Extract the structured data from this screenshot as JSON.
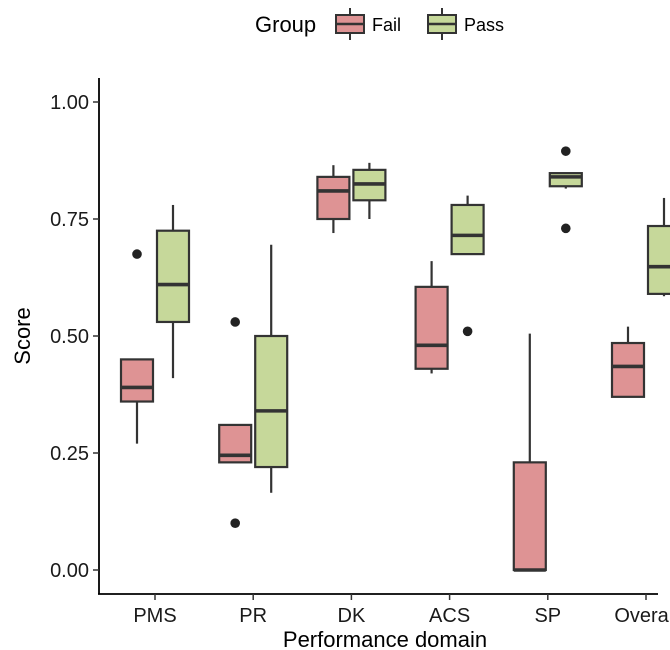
{
  "chart_data": {
    "type": "boxplot",
    "xlabel": "Performance domain",
    "ylabel": "Score",
    "ylim": [
      -0.05,
      1.05
    ],
    "y_ticks": [
      "0.00",
      "0.25",
      "0.50",
      "0.75",
      "1.00"
    ],
    "y_tick_values": [
      0.0,
      0.25,
      0.5,
      0.75,
      1.0
    ],
    "categories": [
      "PMS",
      "PR",
      "DK",
      "ACS",
      "SP",
      "Overall"
    ],
    "legend": {
      "title": "Group",
      "position": "top",
      "entries": [
        "Fail",
        "Pass"
      ]
    },
    "grid": false,
    "series": [
      {
        "name": "Fail",
        "color": "#de9394",
        "boxes": [
          {
            "category": "PMS",
            "low": 0.27,
            "q1": 0.36,
            "median": 0.39,
            "q3": 0.45,
            "high": 0.45,
            "outliers": [
              0.675
            ]
          },
          {
            "category": "PR",
            "low": 0.23,
            "q1": 0.23,
            "median": 0.245,
            "q3": 0.31,
            "high": 0.31,
            "outliers": [
              0.53,
              0.1
            ]
          },
          {
            "category": "DK",
            "low": 0.72,
            "q1": 0.75,
            "median": 0.81,
            "q3": 0.84,
            "high": 0.865,
            "outliers": []
          },
          {
            "category": "ACS",
            "low": 0.42,
            "q1": 0.43,
            "median": 0.48,
            "q3": 0.605,
            "high": 0.66,
            "outliers": []
          },
          {
            "category": "SP",
            "low": 0.0,
            "q1": 0.0,
            "median": 0.0,
            "q3": 0.23,
            "high": 0.505,
            "outliers": []
          },
          {
            "category": "Overall",
            "low": 0.37,
            "q1": 0.37,
            "median": 0.435,
            "q3": 0.485,
            "high": 0.52,
            "outliers": []
          }
        ]
      },
      {
        "name": "Pass",
        "color": "#c6d89a",
        "boxes": [
          {
            "category": "PMS",
            "low": 0.41,
            "q1": 0.53,
            "median": 0.61,
            "q3": 0.725,
            "high": 0.78,
            "outliers": []
          },
          {
            "category": "PR",
            "low": 0.165,
            "q1": 0.22,
            "median": 0.34,
            "q3": 0.5,
            "high": 0.695,
            "outliers": []
          },
          {
            "category": "DK",
            "low": 0.75,
            "q1": 0.79,
            "median": 0.825,
            "q3": 0.855,
            "high": 0.87,
            "outliers": []
          },
          {
            "category": "ACS",
            "low": 0.675,
            "q1": 0.675,
            "median": 0.715,
            "q3": 0.78,
            "high": 0.8,
            "outliers": [
              0.51
            ]
          },
          {
            "category": "SP",
            "low": 0.815,
            "q1": 0.82,
            "median": 0.84,
            "q3": 0.848,
            "high": 0.848,
            "outliers": [
              0.895,
              0.73
            ]
          },
          {
            "category": "Overall",
            "low": 0.585,
            "q1": 0.59,
            "median": 0.648,
            "q3": 0.735,
            "high": 0.795,
            "outliers": []
          }
        ]
      }
    ]
  }
}
